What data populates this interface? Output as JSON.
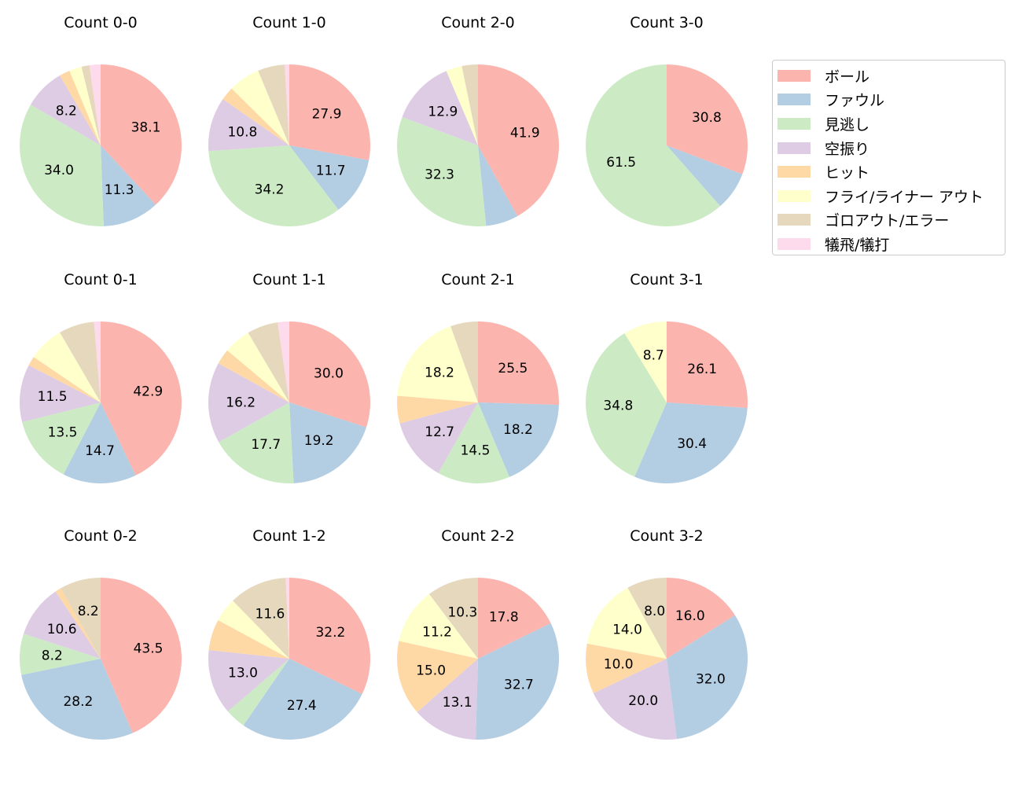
{
  "chart_data": {
    "type": "pie",
    "categories": [
      "ボール",
      "ファウル",
      "見逃し",
      "空振り",
      "ヒット",
      "フライ/ライナー アウト",
      "ゴロアウト/エラー",
      "犠飛/犠打"
    ],
    "colors": [
      "#fbb4ae",
      "#b3cde3",
      "#ccebc5",
      "#decbe4",
      "#fed9a6",
      "#ffffcc",
      "#e5d8bd",
      "#fddaec"
    ],
    "legend_position": "right",
    "start_angle": 90,
    "direction": "clockwise",
    "label_threshold": 8,
    "pies": [
      {
        "title": "Count 0-0",
        "values": [
          38.1,
          11.3,
          34.0,
          8.2,
          2.1,
          2.5,
          1.6,
          2.2
        ]
      },
      {
        "title": "Count 1-0",
        "values": [
          27.9,
          11.7,
          34.2,
          10.8,
          2.7,
          6.3,
          5.4,
          0.9
        ]
      },
      {
        "title": "Count 2-0",
        "values": [
          41.9,
          6.5,
          32.3,
          12.9,
          0,
          3.2,
          3.2,
          0
        ]
      },
      {
        "title": "Count 3-0",
        "values": [
          30.8,
          7.7,
          61.5,
          0,
          0,
          0,
          0,
          0
        ]
      },
      {
        "title": "Count 0-1",
        "values": [
          42.9,
          14.7,
          13.5,
          11.5,
          1.9,
          7.1,
          7.1,
          1.3
        ]
      },
      {
        "title": "Count 1-1",
        "values": [
          30.0,
          19.2,
          17.7,
          16.2,
          3.1,
          5.4,
          6.2,
          2.3
        ]
      },
      {
        "title": "Count 2-1",
        "values": [
          25.5,
          18.2,
          14.5,
          12.7,
          5.5,
          18.2,
          5.5,
          0
        ]
      },
      {
        "title": "Count 3-1",
        "values": [
          26.1,
          30.4,
          34.8,
          0,
          0,
          8.7,
          0,
          0
        ]
      },
      {
        "title": "Count 0-2",
        "values": [
          43.5,
          28.2,
          8.2,
          10.6,
          1.2,
          0,
          8.2,
          0
        ]
      },
      {
        "title": "Count 1-2",
        "values": [
          32.2,
          27.4,
          4.1,
          13.0,
          6.2,
          4.8,
          11.6,
          0.7
        ]
      },
      {
        "title": "Count 2-2",
        "values": [
          17.8,
          32.7,
          0,
          13.1,
          15.0,
          11.2,
          10.3,
          0
        ]
      },
      {
        "title": "Count 3-2",
        "values": [
          16.0,
          32.0,
          0,
          20.0,
          10.0,
          14.0,
          8.0,
          0
        ]
      }
    ]
  }
}
